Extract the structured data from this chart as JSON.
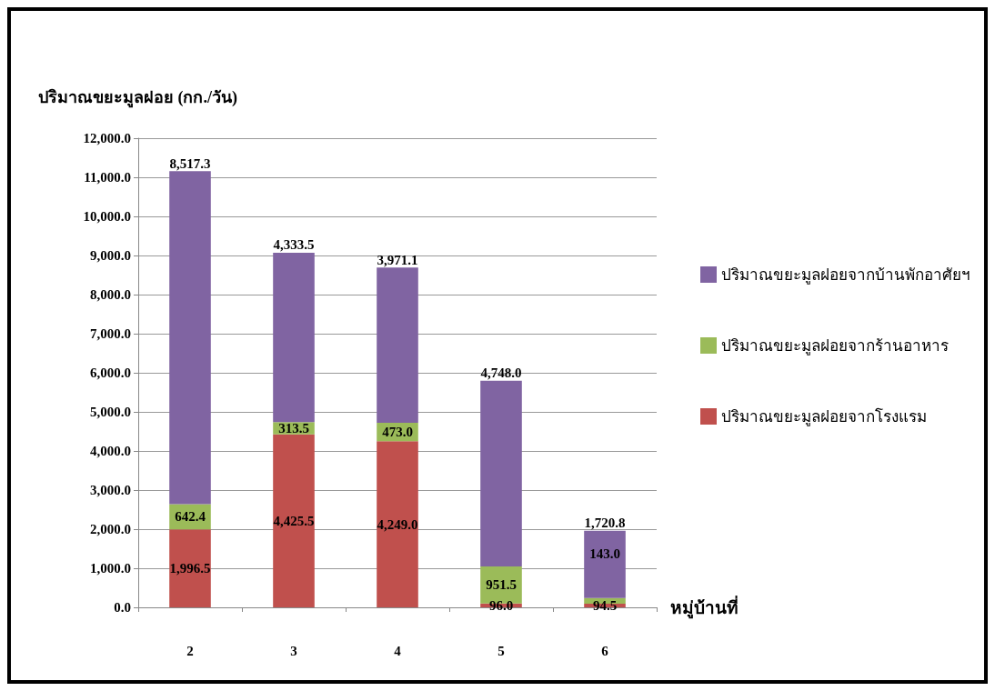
{
  "chart_data": {
    "type": "bar",
    "stacked": true,
    "ylabel": "ปริมาณขยะมูลฝอย (กก./วัน)",
    "xlabel": "หมู่บ้านที่",
    "categories": [
      "2",
      "3",
      "4",
      "5",
      "6"
    ],
    "series": [
      {
        "name": "ปริมาณขยะมูลฝอยจากโรงแรม",
        "color": "#c0504d",
        "values": [
          1996.5,
          4425.5,
          4249.0,
          96.0,
          94.5
        ],
        "value_labels": [
          "1,996.5",
          "4,425.5",
          "4,249.0",
          "96.0",
          "94.5"
        ]
      },
      {
        "name": "ปริมาณขยะมูลฝอยจากร้านอาหาร",
        "color": "#9bbb59",
        "values": [
          642.4,
          313.5,
          473.0,
          951.5,
          143.0
        ],
        "value_labels": [
          "642.4",
          "313.5",
          "473.0",
          "951.5",
          "143.0"
        ]
      },
      {
        "name": "ปริมาณขยะมูลฝอยจากบ้านพักอาศัยฯ",
        "color": "#8064a2",
        "values": [
          8517.3,
          4333.5,
          3971.1,
          4748.0,
          1720.8
        ],
        "value_labels": [
          "8,517.3",
          "4,333.5",
          "3,971.1",
          "4,748.0",
          "1,720.8"
        ]
      }
    ],
    "ylim": [
      0,
      12000
    ],
    "yticks": [
      {
        "value": 0,
        "label": "0.0"
      },
      {
        "value": 1000,
        "label": "1,000.0"
      },
      {
        "value": 2000,
        "label": "2,000.0"
      },
      {
        "value": 3000,
        "label": "3,000.0"
      },
      {
        "value": 4000,
        "label": "4,000.0"
      },
      {
        "value": 5000,
        "label": "5,000.0"
      },
      {
        "value": 6000,
        "label": "6,000.0"
      },
      {
        "value": 7000,
        "label": "7,000.0"
      },
      {
        "value": 8000,
        "label": "8,000.0"
      },
      {
        "value": 9000,
        "label": "9,000.0"
      },
      {
        "value": 10000,
        "label": "10,000.0"
      },
      {
        "value": 11000,
        "label": "11,000.0"
      },
      {
        "value": 12000,
        "label": "12,000.0"
      }
    ],
    "grid": "y",
    "legend": "right"
  }
}
